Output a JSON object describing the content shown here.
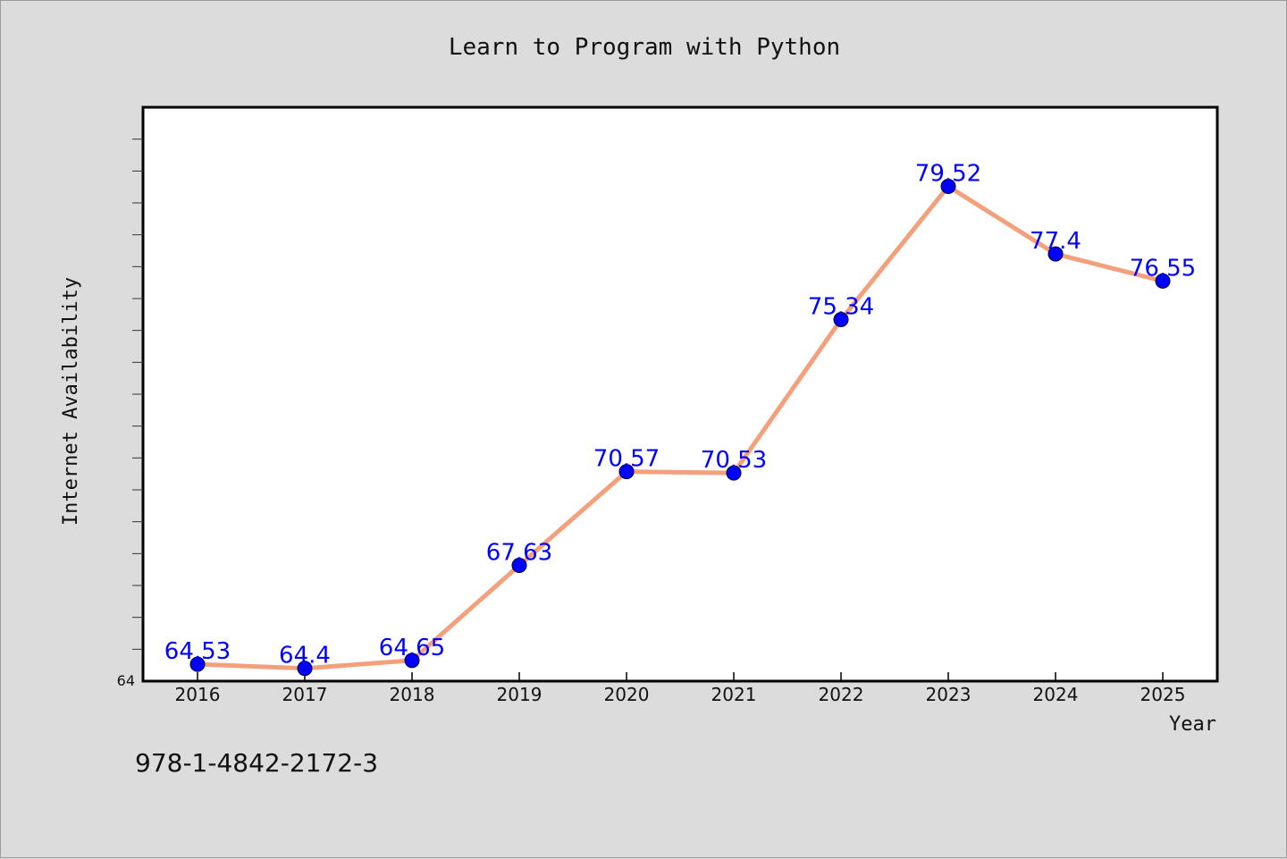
{
  "chart_data": {
    "type": "line",
    "title": "Learn to Program with Python",
    "xlabel": "Year",
    "ylabel": "Internet Availability",
    "categories": [
      "2016",
      "2017",
      "2018",
      "2019",
      "2020",
      "2021",
      "2022",
      "2023",
      "2024",
      "2025"
    ],
    "series": [
      {
        "values": [
          64.53,
          64.4,
          64.65,
          67.63,
          70.57,
          70.53,
          75.34,
          79.52,
          77.4,
          76.55
        ],
        "data_labels": [
          "64.53",
          "64.4",
          "64.65",
          "67.63",
          "70.57",
          "70.53",
          "75.34",
          "79.52",
          "77.4",
          "76.55"
        ],
        "line_color": "#f4a07c",
        "marker_color": "#0000ff",
        "label_color": "#0000ff"
      }
    ],
    "ylim": [
      64,
      82
    ],
    "y_tick_labels": [
      "64"
    ],
    "grid": false,
    "legend": "none"
  },
  "footer_text": "978-1-4842-2172-3"
}
